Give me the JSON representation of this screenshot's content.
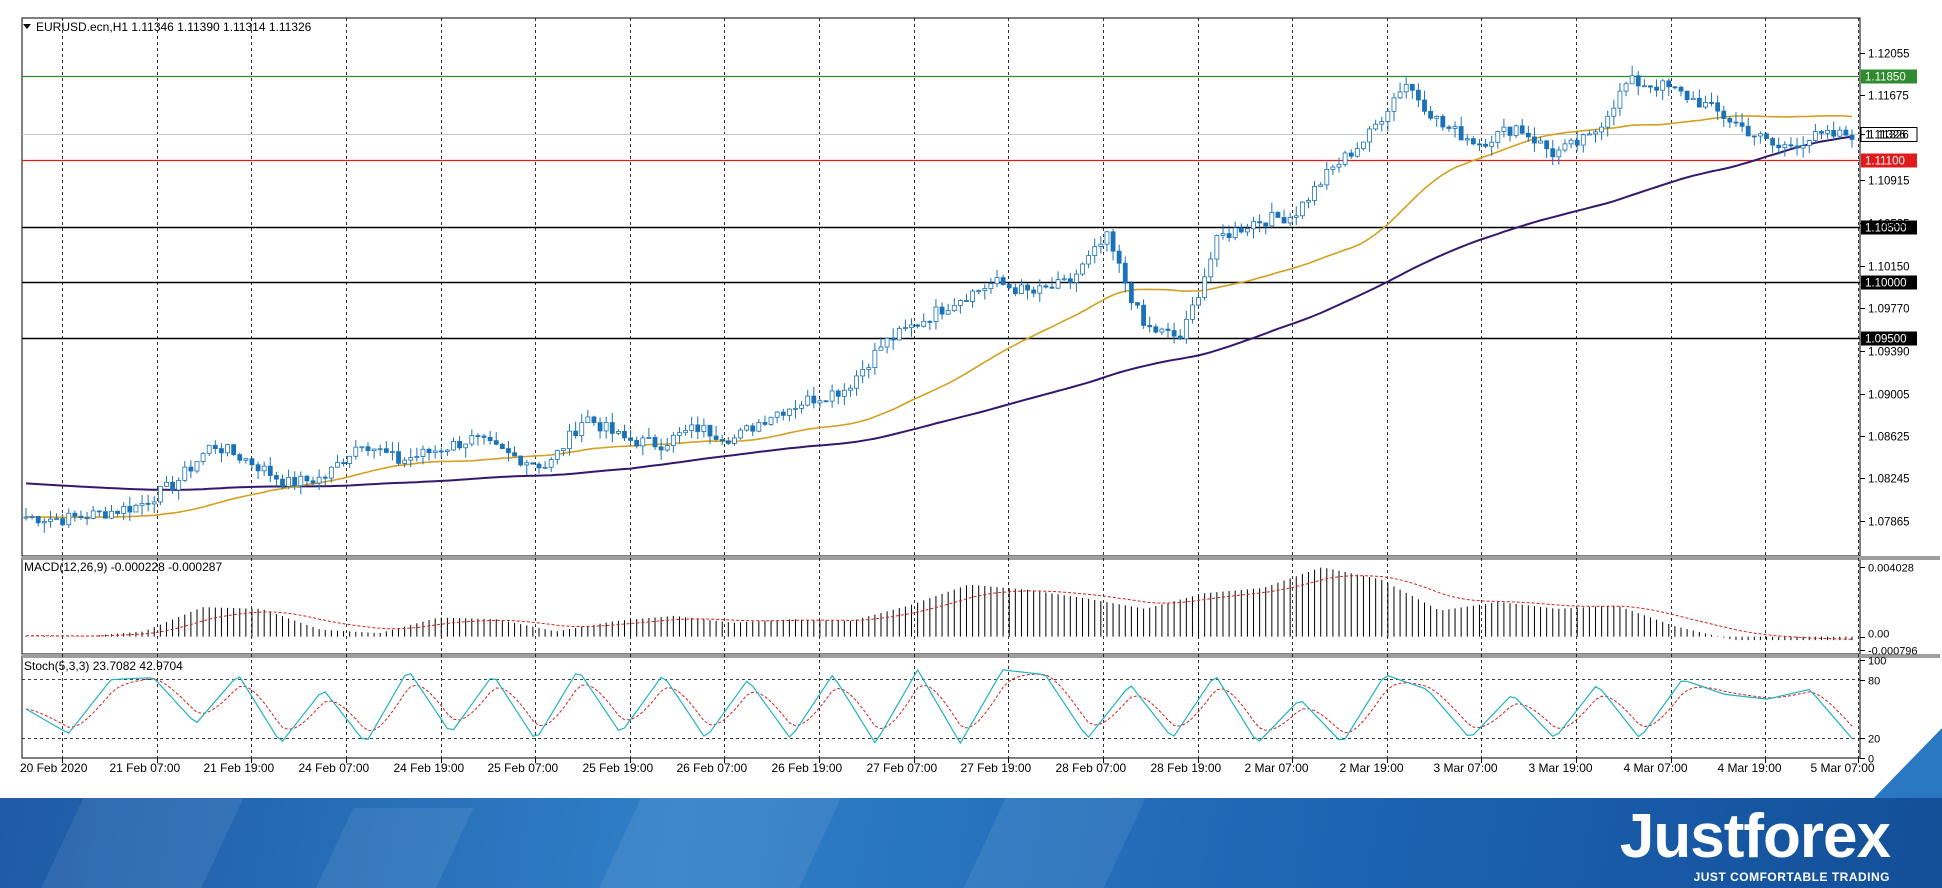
{
  "header": {
    "symbol_line": "EURUSD.ecn,H1  1.11346 1.11390 1.11314 1.11326"
  },
  "colors": {
    "bull": "#ffffff",
    "bear": "#1a72b8",
    "candle_outline": "#1a72b8",
    "ma_fast": "#d4a020",
    "ma_slow": "#34186e",
    "level_green": "#2e8b2e",
    "level_red": "#e01b1b",
    "level_black": "#000000",
    "macd_signal": "#d42020",
    "stoch_main": "#22b3c0",
    "stoch_signal": "#d42020",
    "brand_blue": "#1f6ab8"
  },
  "chart_data": [
    {
      "type": "candlestick",
      "name": "price",
      "title": "EURUSD.ecn,H1",
      "ohlc_readout": [
        "1.11346",
        "1.11390",
        "1.11314",
        "1.11326"
      ],
      "ylim": [
        1.0755,
        1.1235
      ],
      "y_ticks": [
        "1.12055",
        "1.11675",
        "1.11326",
        "1.10915",
        "1.10535",
        "1.10150",
        "1.09770",
        "1.09390",
        "1.09005",
        "1.08625",
        "1.08245",
        "1.07865"
      ],
      "current_price": "1.11326",
      "levels": [
        {
          "value": 1.1185,
          "label": "1.11850",
          "color": "green"
        },
        {
          "value": 1.111,
          "label": "1.11100",
          "color": "red"
        },
        {
          "value": 1.105,
          "label": "1.10500",
          "color": "black"
        },
        {
          "value": 1.1,
          "label": "1.10000",
          "color": "black"
        },
        {
          "value": 1.095,
          "label": "1.09500",
          "color": "black"
        }
      ],
      "x_labels": [
        "20 Feb 2020",
        "21 Feb 07:00",
        "21 Feb 19:00",
        "24 Feb 07:00",
        "24 Feb 19:00",
        "25 Feb 07:00",
        "25 Feb 19:00",
        "26 Feb 07:00",
        "26 Feb 19:00",
        "27 Feb 07:00",
        "27 Feb 19:00",
        "28 Feb 07:00",
        "28 Feb 19:00",
        "2 Mar 07:00",
        "2 Mar 19:00",
        "3 Mar 07:00",
        "3 Mar 19:00",
        "4 Mar 07:00",
        "4 Mar 19:00",
        "5 Mar 07:00"
      ],
      "close_anchors": [
        1.079,
        1.0788,
        1.0793,
        1.08,
        1.082,
        1.0855,
        1.084,
        1.082,
        1.0825,
        1.0858,
        1.084,
        1.085,
        1.086,
        1.0845,
        1.0835,
        1.088,
        1.086,
        1.0855,
        1.087,
        1.086,
        1.0882,
        1.0895,
        1.0905,
        1.0945,
        1.0965,
        1.0985,
        1.1,
        1.099,
        1.1,
        1.104,
        1.096,
        1.095,
        1.104,
        1.1055,
        1.106,
        1.11,
        1.113,
        1.118,
        1.114,
        1.1125,
        1.114,
        1.1115,
        1.113,
        1.118,
        1.1175,
        1.116,
        1.114,
        1.112,
        1.113,
        1.1133
      ],
      "moving_averages": [
        {
          "period": "fast",
          "color": "gold",
          "start": 1.079,
          "end": 1.1143
        },
        {
          "period": "slow",
          "color": "purple",
          "start": 1.082,
          "end": 1.1095
        }
      ]
    },
    {
      "type": "histogram",
      "name": "MACD",
      "title": "MACD(12,26,9) -0.000228 -0.000287",
      "ylim": [
        -0.001,
        0.0043
      ],
      "y_ticks": [
        "0.004028",
        "0.00",
        "-0.000796"
      ],
      "hist_anchors": [
        5e-05,
        2e-05,
        0.0003,
        0.0017,
        0.0016,
        0.0004,
        0.0002,
        0.0011,
        0.001,
        0.0003,
        0.0009,
        0.0012,
        0.0008,
        0.001,
        0.0009,
        0.0018,
        0.003,
        0.0027,
        0.0022,
        0.0016,
        0.0025,
        0.0028,
        0.004,
        0.0033,
        0.0015,
        0.002,
        0.0016,
        0.0018,
        0.0006,
        -0.0002,
        -0.0002,
        -0.0002
      ]
    },
    {
      "type": "line",
      "name": "Stochastic",
      "title": "Stoch(5,3,3) 23.7082 42.9704",
      "ylim": [
        0,
        100
      ],
      "y_ticks": [
        "100",
        "80",
        "20",
        "0"
      ],
      "levels": [
        80,
        20
      ],
      "k_anchors": [
        50,
        25,
        80,
        82,
        35,
        85,
        15,
        70,
        15,
        90,
        25,
        85,
        18,
        90,
        25,
        85,
        20,
        80,
        20,
        85,
        15,
        90,
        15,
        90,
        85,
        20,
        75,
        20,
        85,
        15,
        60,
        15,
        85,
        70,
        20,
        65,
        20,
        75,
        20,
        80,
        65,
        60,
        70,
        20
      ]
    }
  ],
  "branding": {
    "name": "Justforex",
    "tagline": "JUST COMFORTABLE TRADING"
  }
}
